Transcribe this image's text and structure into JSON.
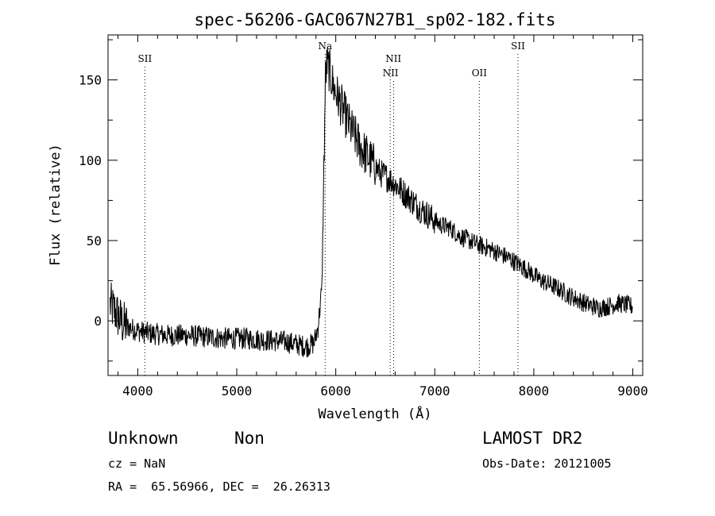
{
  "title": "spec-56206-GAC067N27B1_sp02-182.fits",
  "info": {
    "class": "Unknown",
    "subclass": "Non",
    "cz": "cz = NaN",
    "radec": "RA =  65.56966, DEC =  26.26313",
    "survey": "LAMOST DR2",
    "obsdate": "Obs-Date: 20121005"
  },
  "chart_data": {
    "type": "line",
    "title": "spec-56206-GAC067N27B1_sp02-182.fits",
    "xlabel": "Wavelength (Å)",
    "ylabel": "Flux (relative)",
    "xlim": [
      3700,
      9100
    ],
    "ylim": [
      -34,
      178
    ],
    "xticks": [
      4000,
      5000,
      6000,
      7000,
      8000,
      9000
    ],
    "yticks": [
      0,
      50,
      100,
      150
    ],
    "grid": false,
    "line_markers": [
      {
        "label": "SII",
        "x": 4072
      },
      {
        "label": "Na",
        "x": 5893
      },
      {
        "label": "NII",
        "x": 6550
      },
      {
        "label": "NII",
        "x": 6585
      },
      {
        "label": "OII",
        "x": 7450
      },
      {
        "label": "SII",
        "x": 7840
      }
    ],
    "series": [
      {
        "x": [
          3720,
          3780,
          3850,
          3950,
          4050,
          4150,
          4300,
          4500,
          4700,
          4900,
          5100,
          5300,
          5500,
          5700,
          5780,
          5820,
          5860,
          5880,
          5895,
          5910,
          5940,
          5980,
          6050,
          6150,
          6250,
          6350,
          6450,
          6550,
          6650,
          6750,
          6850,
          6950,
          7050,
          7150,
          7250,
          7350,
          7450,
          7550,
          7650,
          7750,
          7850,
          7950,
          8050,
          8150,
          8250,
          8350,
          8450,
          8550,
          8650,
          8750,
          8850,
          9000
        ],
        "y": [
          10,
          5,
          -2,
          -5,
          -7,
          -8,
          -9,
          -9,
          -10,
          -11,
          -11,
          -12,
          -13,
          -16,
          -14,
          -4,
          20,
          95,
          150,
          160,
          155,
          145,
          135,
          120,
          108,
          100,
          92,
          88,
          82,
          76,
          70,
          65,
          60,
          58,
          53,
          50,
          47,
          45,
          42,
          39,
          35,
          31,
          26,
          23,
          20,
          16,
          13,
          10,
          8,
          9,
          11,
          9
        ]
      }
    ]
  }
}
